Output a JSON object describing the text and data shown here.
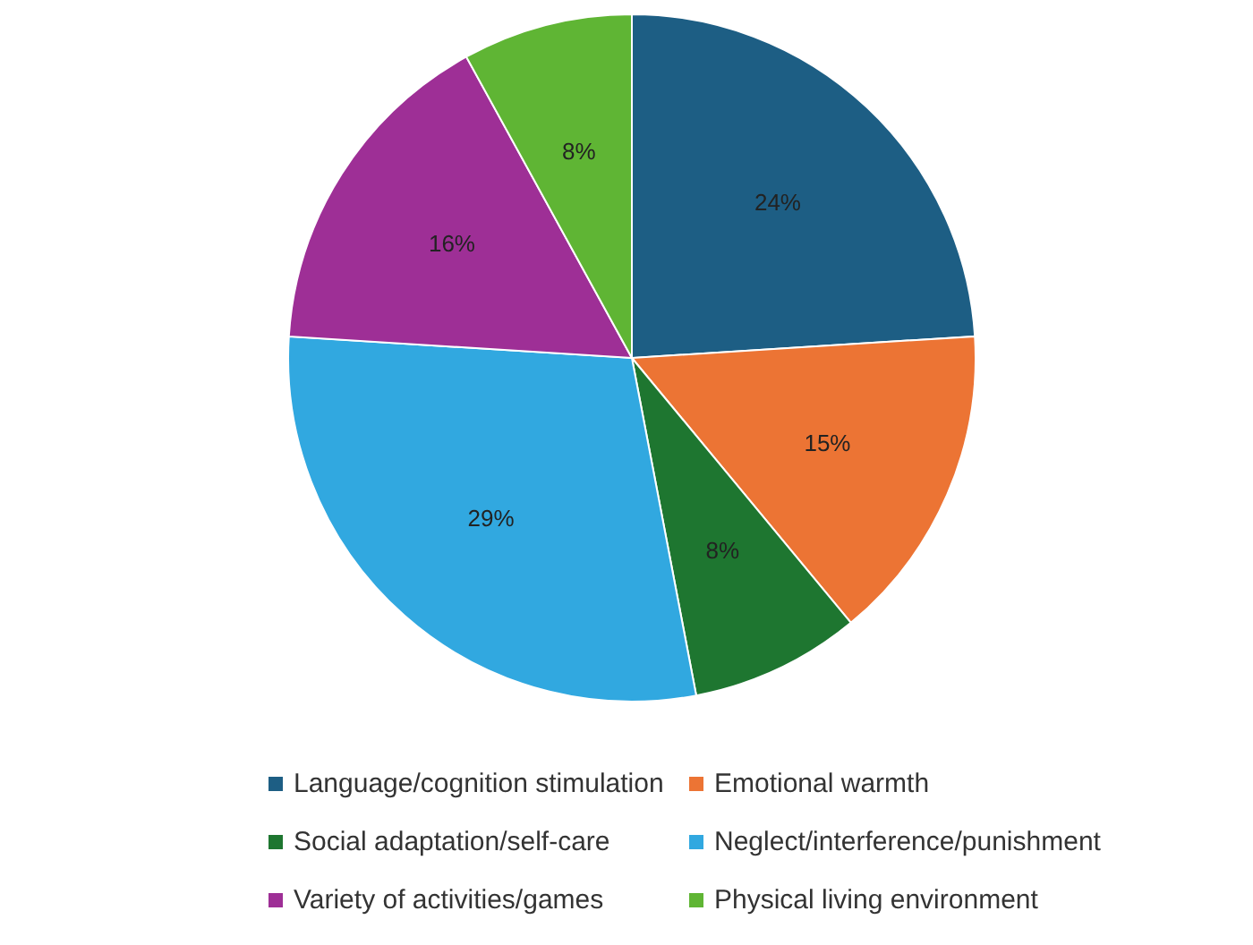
{
  "chart_data": {
    "type": "pie",
    "categories": [
      "Language/cognition stimulation",
      "Emotional warmth",
      "Social adaptation/self-care",
      "Neglect/interference/punishment",
      "Variety of activities/games",
      "Physical living environment"
    ],
    "values": [
      24,
      15,
      8,
      29,
      16,
      8
    ],
    "colors": [
      "#1d5e84",
      "#ec7434",
      "#1e7630",
      "#31a8e0",
      "#9e2f96",
      "#5fb534"
    ],
    "value_labels": [
      "24%",
      "15%",
      "8%",
      "29%",
      "16%",
      "8%"
    ],
    "legend": "bottom"
  }
}
